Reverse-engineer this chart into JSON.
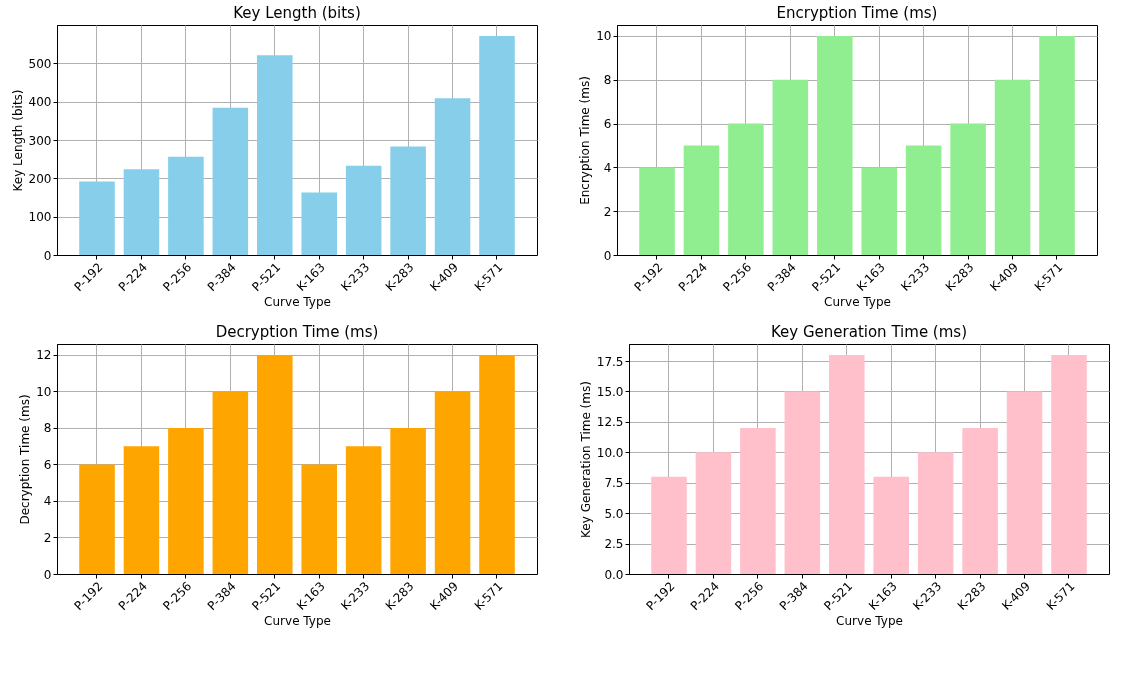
{
  "chart_data": [
    {
      "type": "bar",
      "title": "Key Length (bits)",
      "xlabel": "Curve Type",
      "ylabel": "Key Length (bits)",
      "categories": [
        "P-192",
        "P-224",
        "P-256",
        "P-384",
        "P-521",
        "K-163",
        "K-233",
        "K-283",
        "K-409",
        "K-571"
      ],
      "values": [
        192,
        224,
        256,
        384,
        521,
        163,
        233,
        283,
        409,
        571
      ],
      "color": "#87ceeb",
      "ylim": [
        0,
        600
      ],
      "yticks": [
        0,
        100,
        200,
        300,
        400,
        500
      ],
      "grid": true
    },
    {
      "type": "bar",
      "title": "Encryption Time (ms)",
      "xlabel": "Curve Type",
      "ylabel": "Encryption Time (ms)",
      "categories": [
        "P-192",
        "P-224",
        "P-256",
        "P-384",
        "P-521",
        "K-163",
        "K-233",
        "K-283",
        "K-409",
        "K-571"
      ],
      "values": [
        4,
        5,
        6,
        8,
        10,
        4,
        5,
        6,
        8,
        10
      ],
      "color": "#90ee90",
      "ylim": [
        0,
        10.5
      ],
      "yticks": [
        0,
        2,
        4,
        6,
        8,
        10
      ],
      "grid": true
    },
    {
      "type": "bar",
      "title": "Decryption Time (ms)",
      "xlabel": "Curve Type",
      "ylabel": "Decryption Time (ms)",
      "categories": [
        "P-192",
        "P-224",
        "P-256",
        "P-384",
        "P-521",
        "K-163",
        "K-233",
        "K-283",
        "K-409",
        "K-571"
      ],
      "values": [
        6,
        7,
        8,
        10,
        12,
        6,
        7,
        8,
        10,
        12
      ],
      "color": "#ffa500",
      "ylim": [
        0,
        12.6
      ],
      "yticks": [
        0,
        2,
        4,
        6,
        8,
        10,
        12
      ],
      "grid": true
    },
    {
      "type": "bar",
      "title": "Key Generation Time (ms)",
      "xlabel": "Curve Type",
      "ylabel": "Key Generation Time (ms)",
      "categories": [
        "P-192",
        "P-224",
        "P-256",
        "P-384",
        "P-521",
        "K-163",
        "K-233",
        "K-283",
        "K-409",
        "K-571"
      ],
      "values": [
        8,
        10,
        12,
        15,
        18,
        8,
        10,
        12,
        15,
        18
      ],
      "color": "#ffc0cb",
      "ylim": [
        0,
        18.9
      ],
      "yticks": [
        {
          "value": 0,
          "label": "0.0"
        },
        {
          "value": 2.5,
          "label": "2.5"
        },
        {
          "value": 5,
          "label": "5.0"
        },
        {
          "value": 7.5,
          "label": "7.5"
        },
        {
          "value": 10,
          "label": "10.0"
        },
        {
          "value": 12.5,
          "label": "12.5"
        },
        {
          "value": 15,
          "label": "15.0"
        },
        {
          "value": 17.5,
          "label": "17.5"
        }
      ],
      "grid": true
    }
  ]
}
